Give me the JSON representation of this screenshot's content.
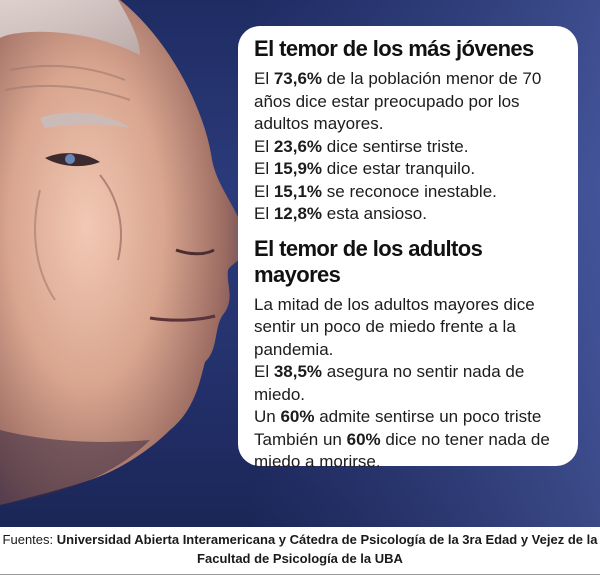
{
  "section1": {
    "title": "El temor de los más jóvenes",
    "stats": [
      {
        "pre": "El ",
        "value": "73,6%",
        "post": " de la población menor de 70 años dice estar preocupado por los adultos mayores."
      },
      {
        "pre": "El ",
        "value": "23,6%",
        "post": " dice sentirse triste."
      },
      {
        "pre": "El ",
        "value": "15,9%",
        "post": " dice estar tranquilo."
      },
      {
        "pre": "El ",
        "value": "15,1%",
        "post": " se reconoce inestable."
      },
      {
        "pre": "El ",
        "value": "12,8%",
        "post": " esta ansioso."
      }
    ]
  },
  "section2": {
    "title": "El temor de los adultos mayores",
    "intro": "La mitad de los adultos mayores dice sentir un poco de miedo frente a la pandemia.",
    "stats": [
      {
        "pre": "El ",
        "value": "38,5%",
        "post": " asegura no sentir nada de miedo."
      },
      {
        "pre": "Un ",
        "value": "60%",
        "post": " admite sentirse un poco triste"
      },
      {
        "pre": "También un ",
        "value": "60%",
        "post": " dice no tener nada de miedo a morirse."
      }
    ]
  },
  "footer": {
    "label": "Fuentes: ",
    "sources": "Universidad Abierta Interamericana y Cátedra de Psicología de la 3ra Edad y Vejez de la Facultad de Psicología de la UBA"
  }
}
